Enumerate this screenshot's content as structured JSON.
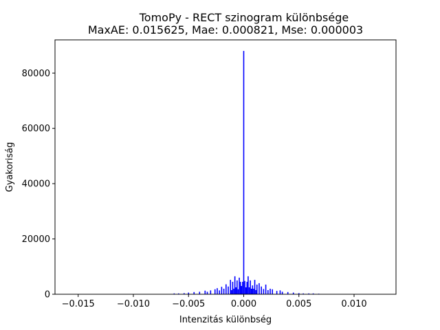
{
  "chart_data": {
    "type": "bar",
    "title": "TomoPy - RECT szinogram különbsége",
    "subtitle": "MaxAE: 0.015625, Mae: 0.000821, Mse: 0.000003",
    "xlabel": "Intenzitás különbség",
    "ylabel": "Gyakoriság",
    "xlim": [
      -0.0171,
      0.0138
    ],
    "ylim": [
      0,
      92000
    ],
    "xticks": [
      -0.015,
      -0.01,
      -0.005,
      0.0,
      0.005,
      0.01
    ],
    "xtick_labels": [
      "−0.015",
      "−0.010",
      "−0.005",
      "0.000",
      "0.005",
      "0.010"
    ],
    "yticks": [
      0,
      20000,
      40000,
      60000,
      80000
    ],
    "ytick_labels": [
      "0",
      "20000",
      "40000",
      "60000",
      "80000"
    ],
    "grid": false,
    "color": "#0000ff",
    "x": [
      -0.0063,
      -0.0059,
      -0.0054,
      -0.005,
      -0.0045,
      -0.004,
      -0.0035,
      -0.0033,
      -0.003,
      -0.0026,
      -0.0024,
      -0.0022,
      -0.002,
      -0.0018,
      -0.0016,
      -0.0014,
      -0.0012,
      -0.0011,
      -0.001,
      -0.0009,
      -0.0008,
      -0.0007,
      -0.0006,
      -0.0005,
      -0.0004,
      -0.0003,
      -0.0002,
      -0.0001,
      0.0,
      0.0001,
      0.0002,
      0.0003,
      0.0004,
      0.0005,
      0.0006,
      0.0007,
      0.0008,
      0.0009,
      0.001,
      0.0011,
      0.0012,
      0.0014,
      0.0016,
      0.0018,
      0.002,
      0.0022,
      0.0024,
      0.0026,
      0.003,
      0.0033,
      0.0035,
      0.004,
      0.0045,
      0.005,
      0.0054,
      0.0059,
      0.0063,
      0.0068
    ],
    "values": [
      300,
      300,
      400,
      600,
      800,
      900,
      1300,
      900,
      1400,
      1800,
      2200,
      1400,
      2700,
      2000,
      3600,
      2800,
      5200,
      1500,
      4500,
      2000,
      6500,
      2500,
      5000,
      1800,
      6000,
      4500,
      3000,
      4500,
      88000,
      4800,
      2500,
      4500,
      6500,
      2500,
      5000,
      2000,
      3200,
      2000,
      5200,
      1500,
      3500,
      4000,
      2800,
      1900,
      3500,
      1500,
      2000,
      1800,
      1200,
      1400,
      900,
      800,
      600,
      400,
      300,
      300,
      300,
      200
    ]
  }
}
